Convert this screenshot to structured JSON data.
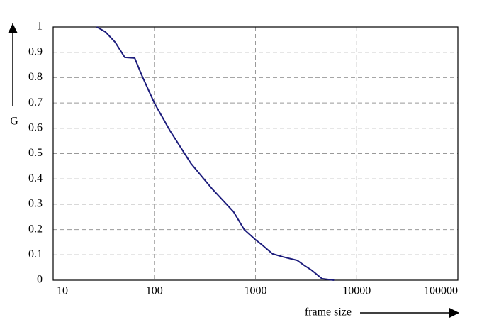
{
  "chart_data": {
    "type": "line",
    "x_label": "frame size",
    "y_label": "G",
    "xscale": "log",
    "grid": true,
    "xlim": [
      10,
      100000
    ],
    "xticks": [
      10,
      100,
      1000,
      10000,
      100000
    ],
    "ylim": [
      0,
      1
    ],
    "yticks": [
      0,
      0.1,
      0.2,
      0.3,
      0.4,
      0.5,
      0.6,
      0.7,
      0.8,
      0.9,
      1
    ],
    "x": [
      27,
      33,
      41,
      51,
      64,
      75,
      100,
      143,
      231,
      374,
      607,
      773,
      1000,
      1156,
      1473,
      1875,
      2590,
      3043,
      3569,
      4541,
      5974
    ],
    "series": [
      {
        "color": "#1c1c7c",
        "values": [
          1,
          0.98,
          0.94,
          0.88,
          0.877,
          0.81,
          0.7,
          0.59,
          0.46,
          0.36,
          0.27,
          0.2,
          0.16,
          0.14,
          0.104,
          0.092,
          0.078,
          0.058,
          0.04,
          0.006,
          0
        ]
      }
    ]
  }
}
